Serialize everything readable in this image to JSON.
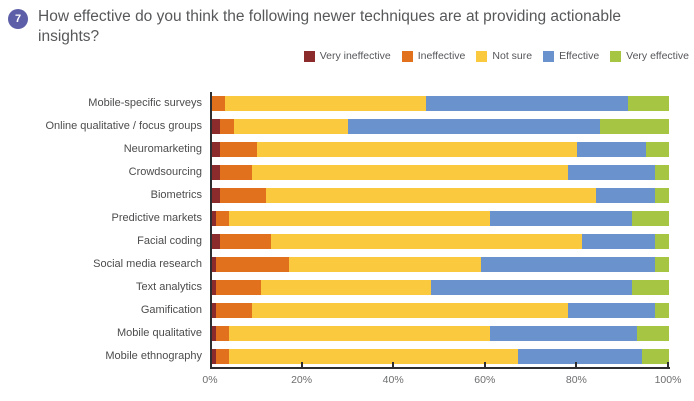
{
  "header": {
    "question_number": "7",
    "title": "How effective do you think the following newer techniques are at providing actionable insights?"
  },
  "legend": [
    {
      "label": "Very ineffective",
      "color": "#8C2B2B"
    },
    {
      "label": "Ineffective",
      "color": "#E2711E"
    },
    {
      "label": "Not sure",
      "color": "#FBC93D"
    },
    {
      "label": "Effective",
      "color": "#6A92CC"
    },
    {
      "label": "Very effective",
      "color": "#A5C543"
    }
  ],
  "chart_data": {
    "type": "bar",
    "stacked": true,
    "orientation": "horizontal",
    "units": "percent",
    "title": "How effective do you think the following newer techniques are at providing actionable insights?",
    "xlabel": "",
    "ylabel": "",
    "xlim": [
      0,
      100
    ],
    "grid": false,
    "legend_position": "top-right",
    "categories": [
      "Mobile-specific surveys",
      "Online qualitative / focus groups",
      "Neuromarketing",
      "Crowdsourcing",
      "Biometrics",
      "Predictive markets",
      "Facial coding",
      "Social media research",
      "Text analytics",
      "Gamification",
      "Mobile qualitative",
      "Mobile ethnography"
    ],
    "series": [
      {
        "name": "Very ineffective",
        "color": "#8C2B2B",
        "values": [
          0,
          2,
          2,
          2,
          2,
          1,
          2,
          1,
          1,
          1,
          1,
          1
        ]
      },
      {
        "name": "Ineffective",
        "color": "#E2711E",
        "values": [
          3,
          3,
          8,
          7,
          10,
          3,
          11,
          16,
          10,
          8,
          3,
          3
        ]
      },
      {
        "name": "Not sure",
        "color": "#FBC93D",
        "values": [
          44,
          25,
          70,
          69,
          72,
          57,
          68,
          42,
          37,
          69,
          57,
          63
        ]
      },
      {
        "name": "Effective",
        "color": "#6A92CC",
        "values": [
          44,
          55,
          15,
          19,
          13,
          31,
          16,
          38,
          44,
          19,
          32,
          27
        ]
      },
      {
        "name": "Very effective",
        "color": "#A5C543",
        "values": [
          9,
          15,
          5,
          3,
          3,
          8,
          3,
          3,
          8,
          3,
          7,
          6
        ]
      }
    ],
    "x_axis": {
      "ticks": [
        "0%",
        "20%",
        "40%",
        "60%",
        "80%",
        "100%"
      ],
      "tick_values": [
        0,
        20,
        40,
        60,
        80,
        100
      ]
    }
  },
  "colors": {
    "badge": "#5C5FA7",
    "axis_line": "#2E2E30",
    "title_text": "#57585A"
  }
}
